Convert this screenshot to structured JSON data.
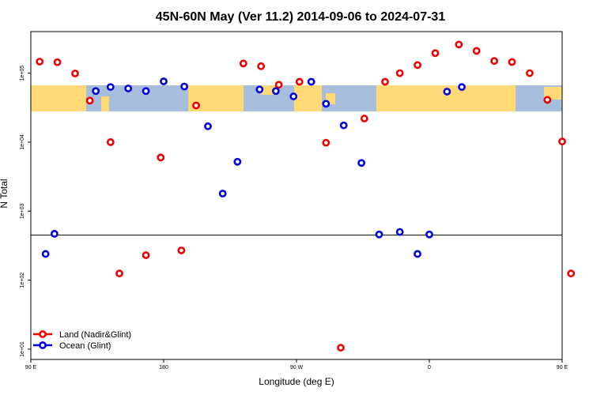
{
  "chart_data": {
    "type": "scatter",
    "title": "45N-60N May (Ver 11.2)   2014-09-06 to 2024-07-31",
    "xlabel": "Longitude (deg E)",
    "ylabel": "N Total",
    "y_scale": "log",
    "ylim": [
      7.1,
      400000
    ],
    "xlim": [
      90,
      450
    ],
    "x_ticks": [
      {
        "value": 90,
        "label": "90 E"
      },
      {
        "value": 180,
        "label": "180"
      },
      {
        "value": 270,
        "label": "90 W"
      },
      {
        "value": 360,
        "label": "0"
      },
      {
        "value": 450,
        "label": "90 E"
      },
      {
        "value": 540,
        "label": "180"
      }
    ],
    "y_ticks": [
      {
        "value": 10,
        "label": "1e+01"
      },
      {
        "value": 100,
        "label": "1e+02"
      },
      {
        "value": 1000,
        "label": "1e+03"
      },
      {
        "value": 10000,
        "label": "1e+04"
      },
      {
        "value": 100000,
        "label": "1e+05"
      }
    ],
    "reference_line_y": 450,
    "legend_position": "bottom-left",
    "series": [
      {
        "name": "Land (Nadir&Glint)",
        "color": "#ee0000",
        "points": [
          {
            "x": 96,
            "y": 147000
          },
          {
            "x": 108,
            "y": 144000
          },
          {
            "x": 120,
            "y": 99000
          },
          {
            "x": 130,
            "y": 40000
          },
          {
            "x": 144,
            "y": 10000
          },
          {
            "x": 150,
            "y": 125
          },
          {
            "x": 168,
            "y": 230
          },
          {
            "x": 178,
            "y": 6000
          },
          {
            "x": 192,
            "y": 270
          },
          {
            "x": 202,
            "y": 34000
          },
          {
            "x": 234,
            "y": 138000
          },
          {
            "x": 246,
            "y": 126000
          },
          {
            "x": 258,
            "y": 68000
          },
          {
            "x": 272,
            "y": 75000
          },
          {
            "x": 290,
            "y": 9800
          },
          {
            "x": 300,
            "y": 10.5
          },
          {
            "x": 316,
            "y": 22000
          },
          {
            "x": 330,
            "y": 75000
          },
          {
            "x": 340,
            "y": 100000
          },
          {
            "x": 352,
            "y": 131000
          },
          {
            "x": 364,
            "y": 195000
          },
          {
            "x": 380,
            "y": 260000
          },
          {
            "x": 392,
            "y": 210000
          },
          {
            "x": 404,
            "y": 150000
          },
          {
            "x": 416,
            "y": 145000
          },
          {
            "x": 428,
            "y": 100000
          },
          {
            "x": 440,
            "y": 41000
          },
          {
            "x": 450,
            "y": 10200
          },
          {
            "x": 456,
            "y": 125
          }
        ]
      },
      {
        "name": "Ocean (Glint)",
        "color": "#0000dd",
        "points": [
          {
            "x": 100,
            "y": 240
          },
          {
            "x": 106,
            "y": 470
          },
          {
            "x": 134,
            "y": 55000
          },
          {
            "x": 144,
            "y": 63000
          },
          {
            "x": 156,
            "y": 60000
          },
          {
            "x": 168,
            "y": 55000
          },
          {
            "x": 180,
            "y": 76000
          },
          {
            "x": 194,
            "y": 64000
          },
          {
            "x": 210,
            "y": 17000
          },
          {
            "x": 220,
            "y": 1800
          },
          {
            "x": 230,
            "y": 5200
          },
          {
            "x": 245,
            "y": 58000
          },
          {
            "x": 256,
            "y": 55000
          },
          {
            "x": 268,
            "y": 46000
          },
          {
            "x": 280,
            "y": 75000
          },
          {
            "x": 290,
            "y": 36000
          },
          {
            "x": 302,
            "y": 17500
          },
          {
            "x": 314,
            "y": 5000
          },
          {
            "x": 326,
            "y": 460
          },
          {
            "x": 340,
            "y": 500
          },
          {
            "x": 352,
            "y": 240
          },
          {
            "x": 360,
            "y": 460
          },
          {
            "x": 372,
            "y": 54000
          },
          {
            "x": 382,
            "y": 63000
          }
        ]
      }
    ]
  }
}
